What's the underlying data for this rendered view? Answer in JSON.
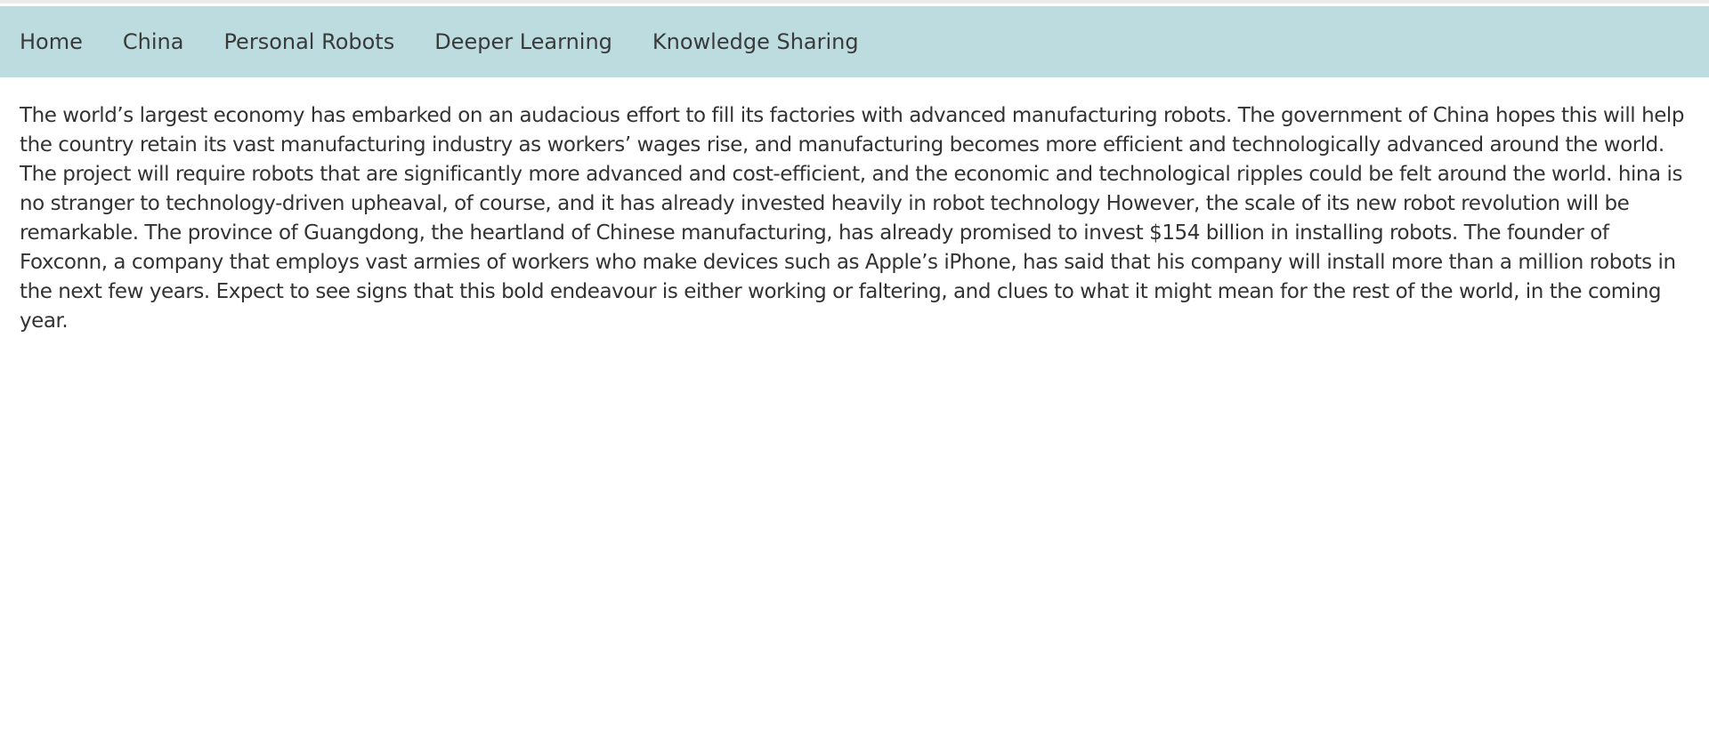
{
  "nav": {
    "items": [
      {
        "label": "Home"
      },
      {
        "label": "China"
      },
      {
        "label": "Personal Robots"
      },
      {
        "label": "Deeper Learning"
      },
      {
        "label": "Knowledge Sharing"
      }
    ]
  },
  "main": {
    "paragraph": "The world’s largest economy has embarked on an audacious effort to fill its factories with advanced manufacturing robots. The government of China hopes this will help the country retain its vast manufacturing industry as workers’ wages rise, and manufacturing becomes more efficient and technologically advanced around the world. The project will require robots that are significantly more advanced and cost-efficient, and the economic and technological ripples could be felt around the world. hina is no stranger to technology-driven upheaval, of course, and it has already invested heavily in robot technology However, the scale of its new robot revolution will be remarkable. The province of Guangdong, the heartland of Chinese manufacturing, has already promised to invest $154 billion in installing robots. The founder of Foxconn, a company that employs vast armies of workers who make devices such as Apple’s iPhone, has said that his company will install more than a million robots in the next few years. Expect to see signs that this bold endeavour is either working or faltering, and clues to what it might mean for the rest of the world, in the coming year."
  },
  "colors": {
    "navbar_background": "#bcdcdf",
    "text": "#333333",
    "page_background": "#ffffff"
  }
}
